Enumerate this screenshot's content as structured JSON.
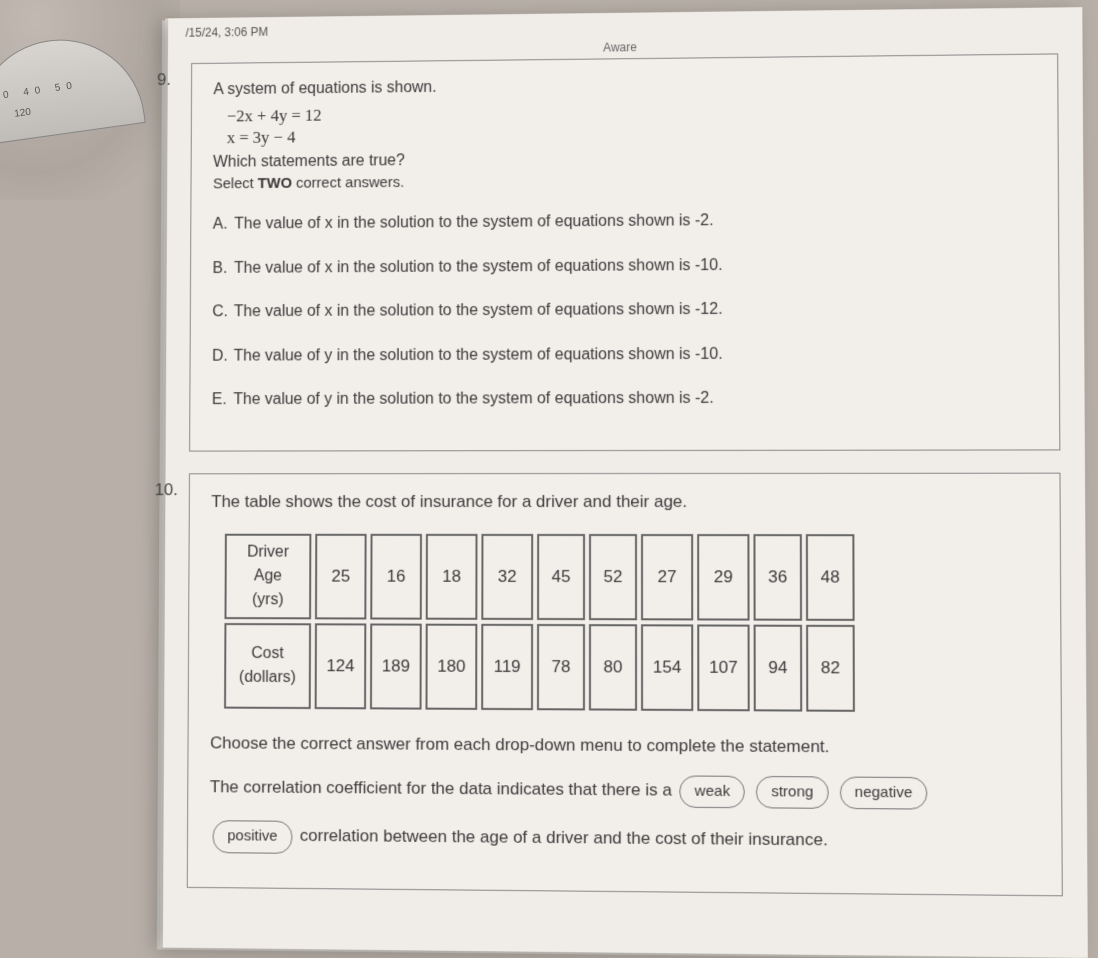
{
  "timestamp": "/15/24, 3:06 PM",
  "header_label": "Aware",
  "q9": {
    "num": "9.",
    "intro": "A system of equations is shown.",
    "eq1": "−2x + 4y = 12",
    "eq2": "x = 3y − 4",
    "sub1": "Which statements are true?",
    "sub2_pre": "Select ",
    "sub2_bold": "TWO",
    "sub2_post": " correct answers.",
    "choices": [
      {
        "lbl": "A.",
        "txt": "The value of x in the solution to the system of equations shown is -2."
      },
      {
        "lbl": "B.",
        "txt": "The value of x in the solution to the system of equations shown is -10."
      },
      {
        "lbl": "C.",
        "txt": "The value of x in the solution to the system of equations shown is -12."
      },
      {
        "lbl": "D.",
        "txt": "The value of y in the solution to the system of equations shown is -10."
      },
      {
        "lbl": "E.",
        "txt": "The value of y in the solution to the system of equations shown is -2."
      }
    ]
  },
  "q10": {
    "num": "10.",
    "intro": "The table shows the cost of insurance for a driver and their age.",
    "table": {
      "row1_header": "Driver Age (yrs)",
      "row2_header": "Cost (dollars)",
      "ages": [
        "25",
        "16",
        "18",
        "32",
        "45",
        "52",
        "27",
        "29",
        "36",
        "48"
      ],
      "costs": [
        "124",
        "189",
        "180",
        "119",
        "78",
        "80",
        "154",
        "107",
        "94",
        "82"
      ]
    },
    "stmt1": "Choose the correct answer from each drop-down menu to complete the statement.",
    "stmt2_pre": "The correlation coefficient for the data indicates that there is a",
    "pills_line1": [
      "weak",
      "strong",
      "negative"
    ],
    "pill_line2": "positive",
    "stmt2_post": "correlation between the age of a driver and the cost of their insurance."
  },
  "colors": {
    "paper": "#f2eeea",
    "border": "#888888",
    "text": "#3a3a3a",
    "desk": "#b8b0a8"
  }
}
